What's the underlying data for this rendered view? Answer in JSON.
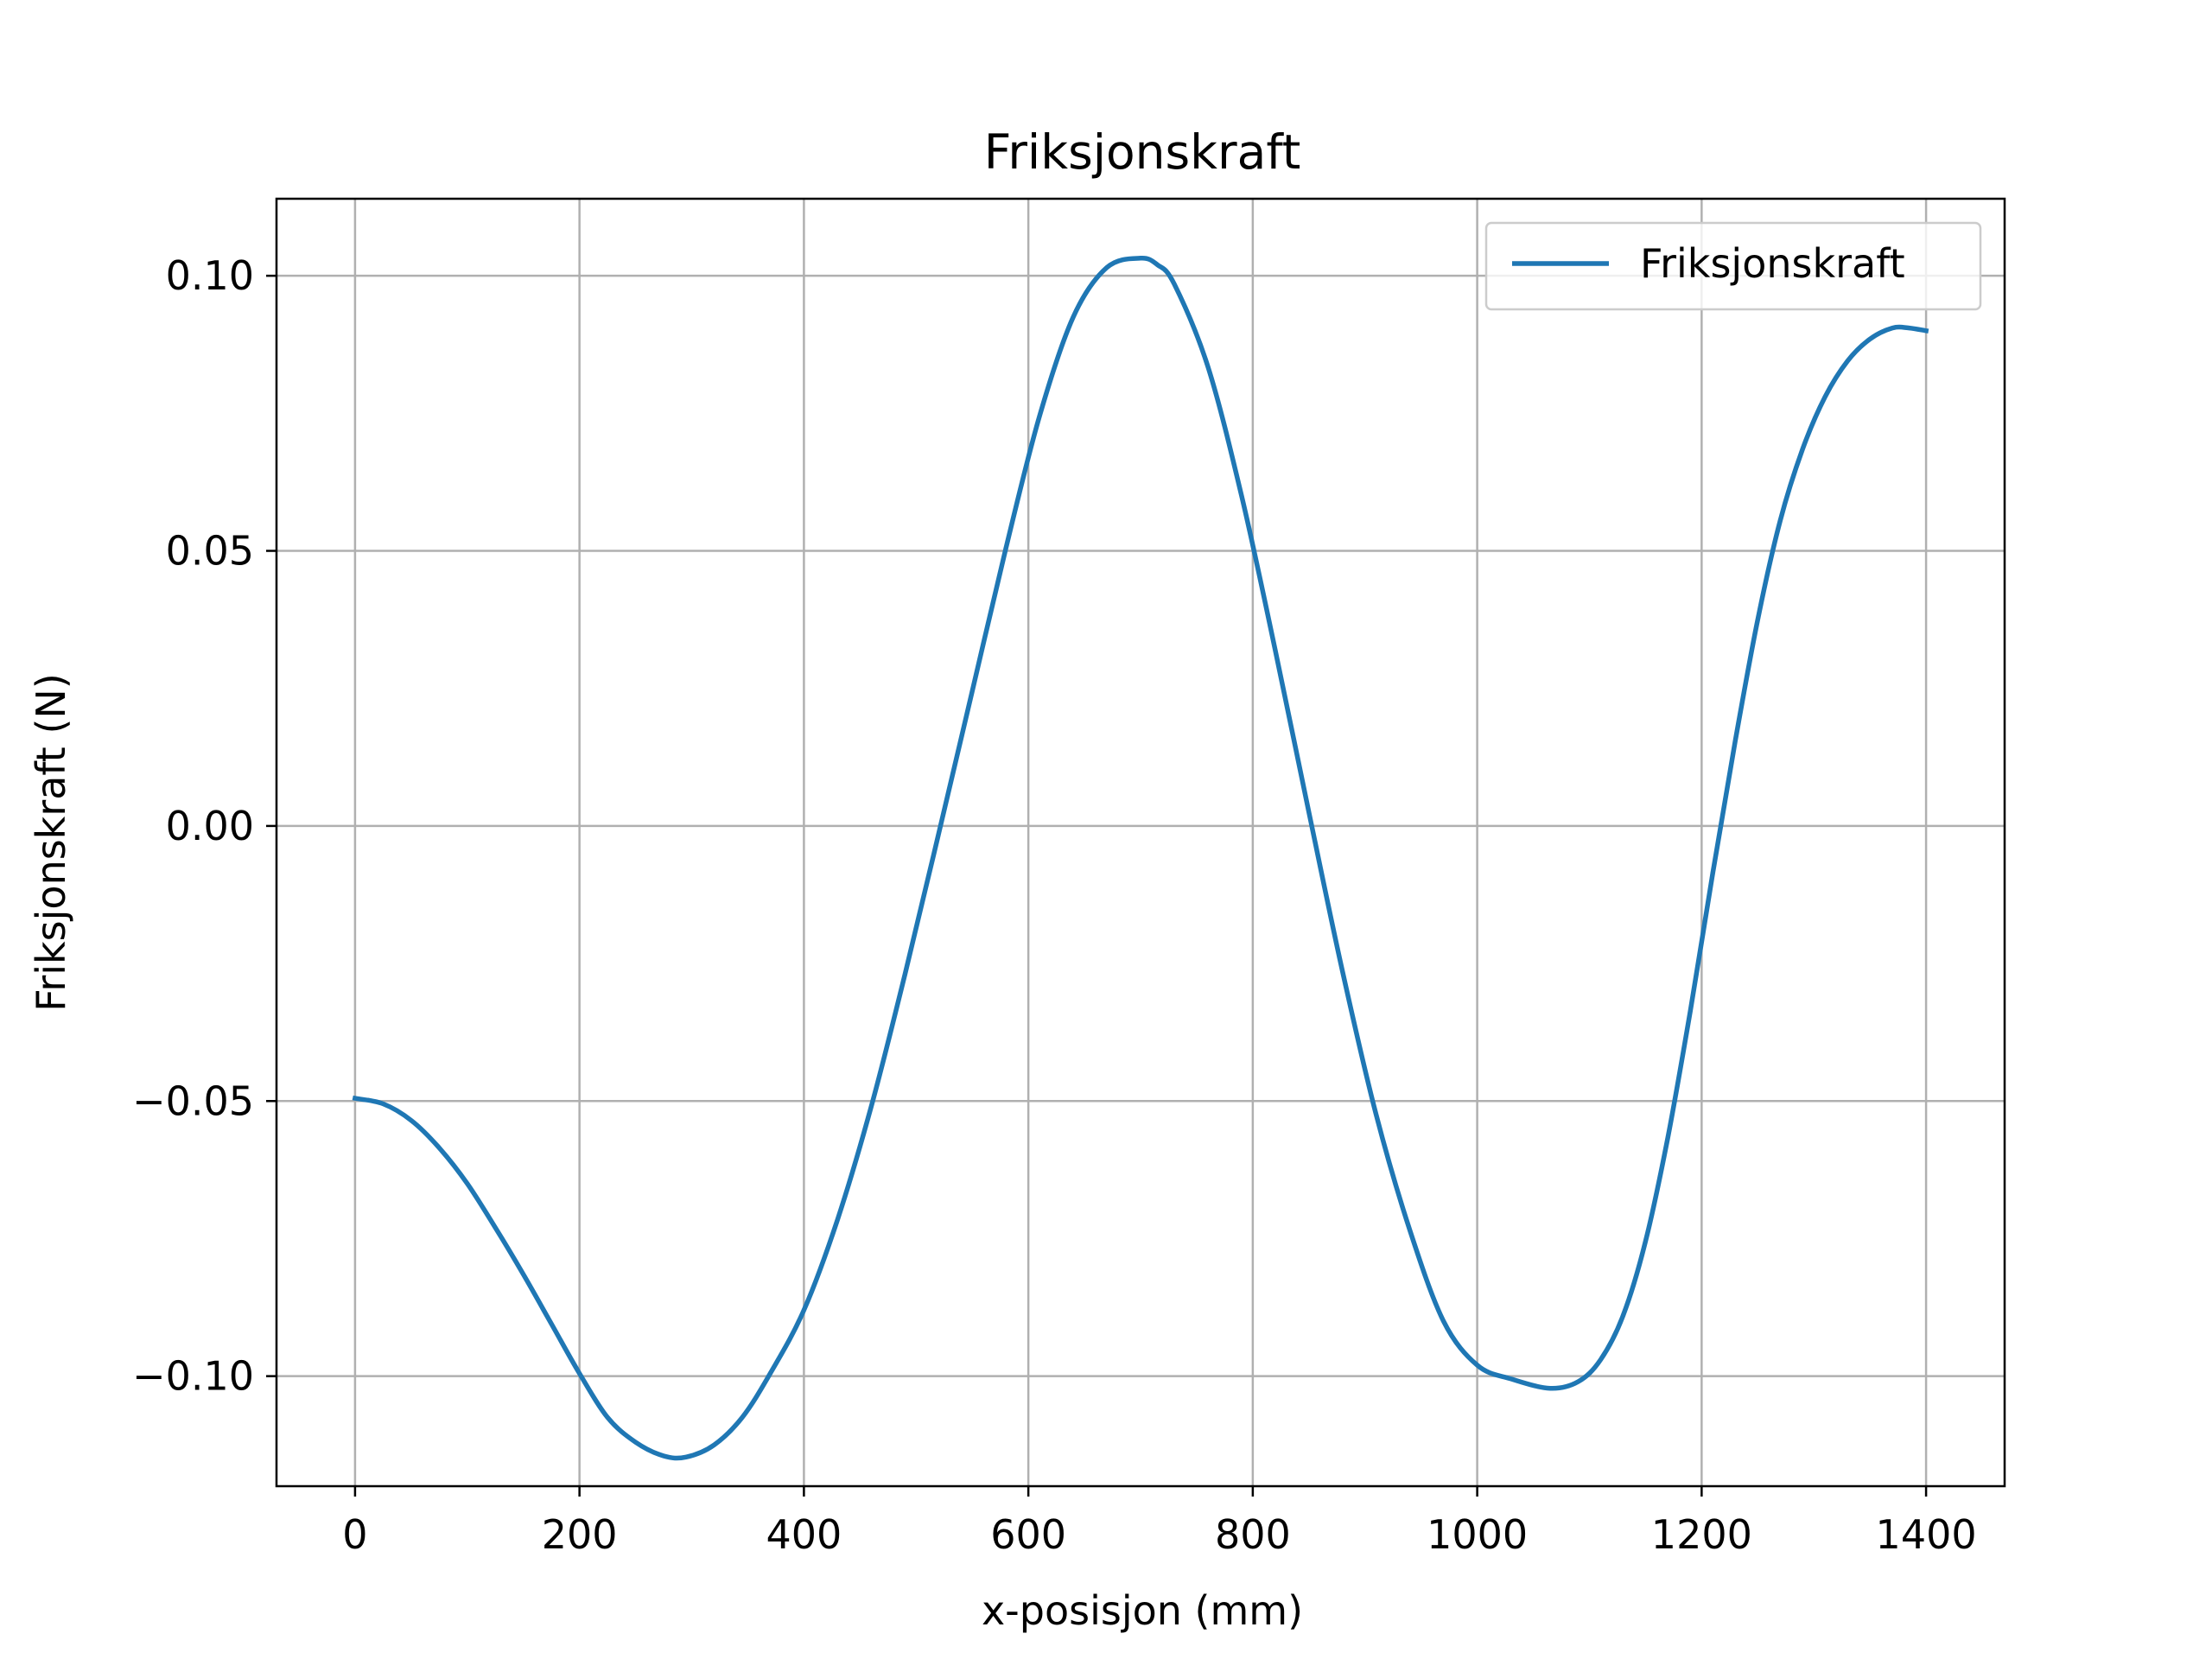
{
  "chart_data": {
    "type": "line",
    "title": "Friksjonskraft",
    "xlabel": "x-posisjon (mm)",
    "ylabel": "Friksjonskraft (N)",
    "xlim": [
      -70,
      1470
    ],
    "ylim": [
      -0.12,
      0.114
    ],
    "xticks": [
      {
        "value": 0,
        "label": "0"
      },
      {
        "value": 200,
        "label": "200"
      },
      {
        "value": 400,
        "label": "400"
      },
      {
        "value": 600,
        "label": "600"
      },
      {
        "value": 800,
        "label": "800"
      },
      {
        "value": 1000,
        "label": "1000"
      },
      {
        "value": 1200,
        "label": "1200"
      },
      {
        "value": 1400,
        "label": "1400"
      }
    ],
    "yticks": [
      {
        "value": -0.1,
        "label": "−0.10"
      },
      {
        "value": -0.05,
        "label": "−0.05"
      },
      {
        "value": 0.0,
        "label": "0.00"
      },
      {
        "value": 0.05,
        "label": "0.05"
      },
      {
        "value": 0.1,
        "label": "0.10"
      }
    ],
    "grid": true,
    "legend_position": "top-right",
    "colors": {
      "series": "#1f77b4",
      "grid": "#b0b0b0",
      "axes": "#000000",
      "legend_border": "#cccccc"
    },
    "series": [
      {
        "name": "Friksjonskraft",
        "x": [
          0,
          25,
          50,
          75,
          100,
          125,
          150,
          175,
          200,
          225,
          250,
          275,
          295,
          320,
          345,
          370,
          400,
          430,
          460,
          490,
          520,
          550,
          580,
          610,
          640,
          670,
          700,
          715,
          730,
          760,
          790,
          820,
          850,
          880,
          910,
          940,
          970,
          1000,
          1030,
          1065,
          1090,
          1110,
          1130,
          1150,
          1170,
          1190,
          1210,
          1230,
          1250,
          1270,
          1290,
          1310,
          1330,
          1350,
          1370,
          1385,
          1400
        ],
        "y": [
          -0.0495,
          -0.0505,
          -0.0535,
          -0.0585,
          -0.065,
          -0.073,
          -0.0815,
          -0.0905,
          -0.0995,
          -0.1075,
          -0.112,
          -0.1145,
          -0.1147,
          -0.1125,
          -0.1075,
          -0.0995,
          -0.088,
          -0.0715,
          -0.051,
          -0.027,
          -0.0015,
          0.0245,
          0.0505,
          0.0745,
          0.0925,
          0.1015,
          0.1032,
          0.102,
          0.0985,
          0.0835,
          0.06,
          0.032,
          0.0025,
          -0.0265,
          -0.0525,
          -0.0735,
          -0.09,
          -0.098,
          -0.1005,
          -0.1022,
          -0.101,
          -0.097,
          -0.089,
          -0.0755,
          -0.0565,
          -0.0335,
          -0.0085,
          0.0155,
          0.0375,
          0.0555,
          0.0685,
          0.078,
          0.0845,
          0.0885,
          0.0905,
          0.0905,
          0.09
        ]
      }
    ]
  }
}
